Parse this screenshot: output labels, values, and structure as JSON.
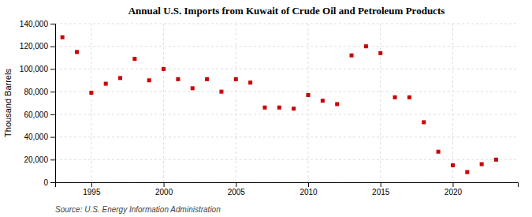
{
  "chart_data": {
    "type": "scatter",
    "title": "Annual U.S. Imports from Kuwait of Crude Oil and Petroleum Products",
    "ylabel": "Thousand Barrels",
    "source": "Source: U.S. Energy Information Administration",
    "x": [
      1993,
      1994,
      1995,
      1996,
      1997,
      1998,
      1999,
      2000,
      2001,
      2002,
      2003,
      2004,
      2005,
      2006,
      2007,
      2008,
      2009,
      2010,
      2011,
      2012,
      2013,
      2014,
      2015,
      2016,
      2017,
      2018,
      2019,
      2020,
      2021,
      2022,
      2023
    ],
    "values": [
      128000,
      115000,
      79000,
      87000,
      92000,
      109000,
      90000,
      100000,
      91000,
      83000,
      91000,
      80000,
      91000,
      88000,
      66000,
      66000,
      65000,
      77000,
      72000,
      69000,
      112000,
      120000,
      114000,
      75000,
      75000,
      53000,
      27000,
      15000,
      9000,
      16000,
      20000
    ],
    "color": "#cc0000",
    "marker": "square",
    "grid": true,
    "xlim": [
      1992.5,
      2024.5
    ],
    "xticks": [
      1995,
      2000,
      2005,
      2010,
      2015,
      2020
    ],
    "ylim": [
      0,
      140000
    ],
    "yticks": [
      0,
      {
        "value": 20000,
        "label": "20,000"
      },
      {
        "value": 40000,
        "label": "40,000"
      },
      {
        "value": 60000,
        "label": "60,000"
      },
      {
        "value": 80000,
        "label": "80,000"
      },
      {
        "value": 100000,
        "label": "100,000"
      },
      {
        "value": 120000,
        "label": "120,000"
      },
      {
        "value": 140000,
        "label": "140,000"
      }
    ]
  }
}
